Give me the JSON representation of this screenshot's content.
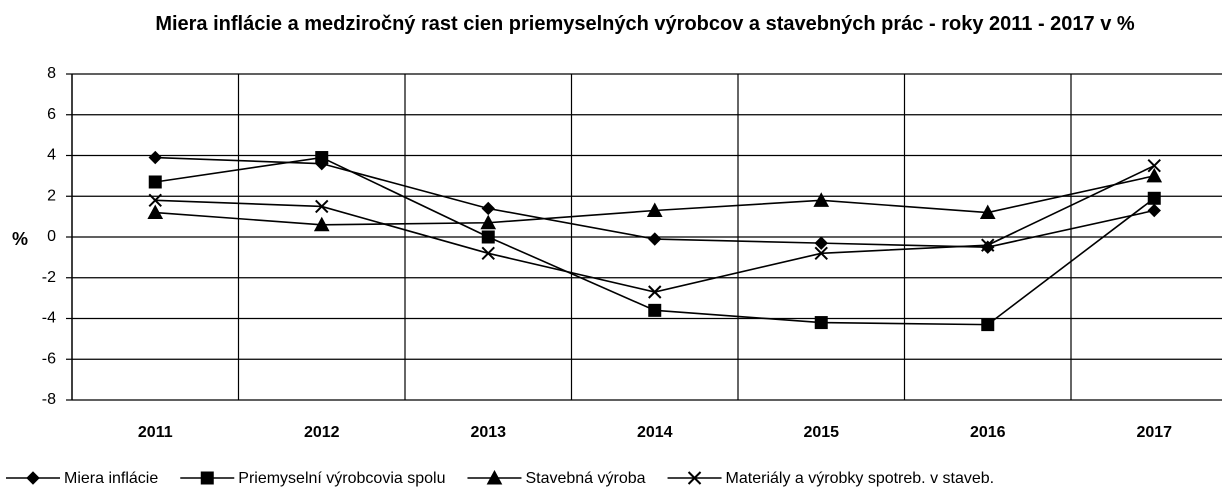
{
  "chart_data": {
    "type": "line",
    "title": "Miera inflácie a medziročný rast cien priemyselných výrobcov a stavebných prác - roky 2011 - 2017 v %",
    "y_label": "%",
    "categories": [
      "2011",
      "2012",
      "2013",
      "2014",
      "2015",
      "2016",
      "2017"
    ],
    "series": [
      {
        "name": "Miera inflácie",
        "color": "#000000",
        "marker": "diamond",
        "values": [
          3.9,
          3.6,
          1.4,
          -0.1,
          -0.3,
          -0.5,
          1.3
        ]
      },
      {
        "name": "Priemyselní výrobcovia spolu",
        "color": "#000000",
        "marker": "square",
        "values": [
          2.7,
          3.9,
          0.0,
          -3.6,
          -4.2,
          -4.3,
          1.9
        ]
      },
      {
        "name": "Stavebná výroba",
        "color": "#000000",
        "marker": "triangle",
        "values": [
          1.2,
          0.6,
          0.7,
          1.3,
          1.8,
          1.2,
          3.0
        ]
      },
      {
        "name": "Materiály a výrobky spotreb. v staveb.",
        "color": "#000000",
        "marker": "x",
        "values": [
          1.8,
          1.5,
          -0.8,
          -2.7,
          -0.8,
          -0.4,
          3.5
        ]
      }
    ],
    "ylim": [
      -8,
      8
    ],
    "yticks": [
      -8,
      -6,
      -4,
      -2,
      0,
      2,
      4,
      6,
      8
    ],
    "grid": true,
    "legend": "bottom"
  }
}
